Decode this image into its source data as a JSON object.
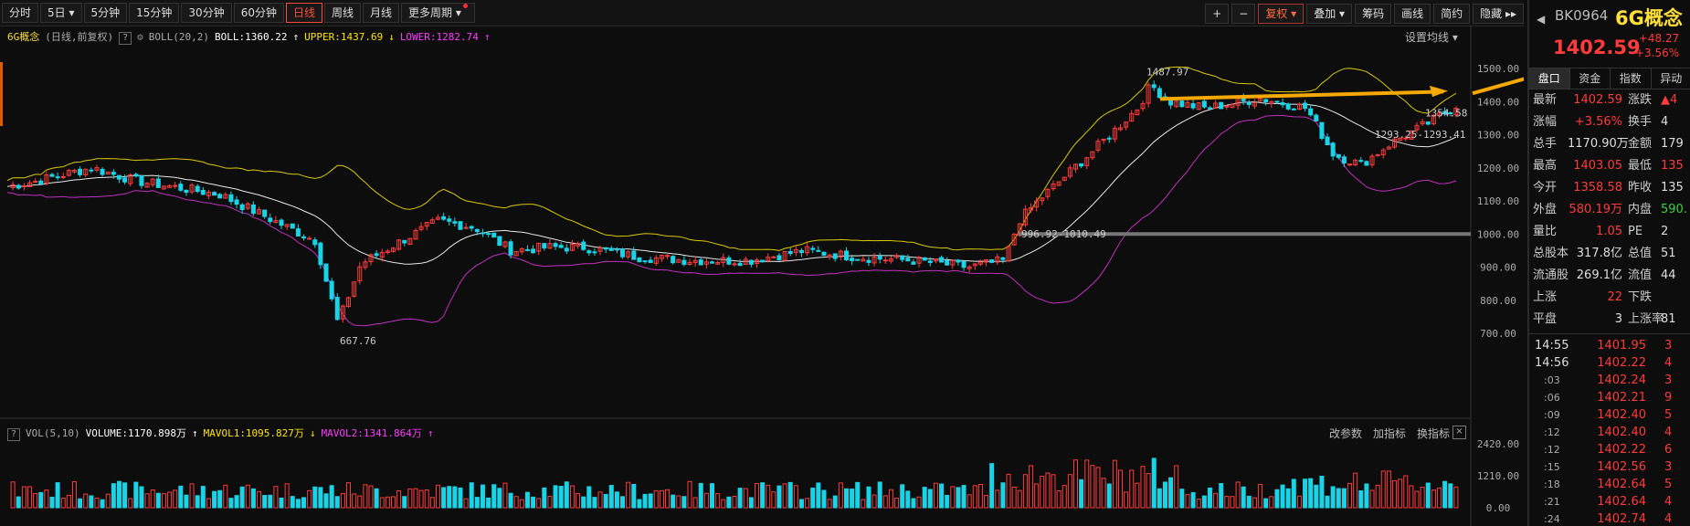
{
  "toolbar": {
    "periods": [
      "分时",
      "5日",
      "5分钟",
      "15分钟",
      "30分钟",
      "60分钟",
      "日线",
      "周线",
      "月线",
      "更多周期"
    ],
    "active_period": "日线",
    "right": [
      "+",
      "−",
      "复权",
      "叠加",
      "筹码",
      "画线",
      "简约",
      "隐藏"
    ]
  },
  "info": {
    "name": "6G概念",
    "mode": "(日线,前复权)",
    "boll": "BOLL(20,2)",
    "mid": "BOLL:1360.22",
    "upper": "UPPER:1437.69",
    "lower": "LOWER:1282.74",
    "settings": "设置均线"
  },
  "volume": {
    "vol": "VOL(5,10)",
    "volume": "VOLUME:1170.898万",
    "mavol1": "MAVOL1:1095.827万",
    "mavol2": "MAVOL2:1341.864万",
    "tools": [
      "改参数",
      "加指标",
      "换指标"
    ],
    "close": "×"
  },
  "chart_data": {
    "type": "candlestick",
    "price_axis": [
      "1500.00",
      "1400.00",
      "1300.00",
      "1200.00",
      "1100.00",
      "1000.00",
      "900.00",
      "800.00",
      "700.00"
    ],
    "volume_axis": [
      "2420.00",
      "1210.00",
      "0.00"
    ],
    "annotations": [
      "1487.97",
      "667.76",
      "996.92-1010.49",
      "1293.25-1293.41",
      "1354.58"
    ],
    "ylim": [
      665,
      1510
    ],
    "volume_max": 2420
  },
  "panel": {
    "code": "BK0964",
    "name": "6G概念",
    "price": "1402.59",
    "change": "+48.27",
    "change_pct": "+3.56%",
    "tabs": [
      "盘口",
      "资金",
      "指数",
      "异动"
    ],
    "rows": [
      {
        "k1": "最新",
        "v1": "1402.59",
        "c1": "r",
        "k2": "涨跌",
        "v2": "▲4",
        "c2": "r"
      },
      {
        "k1": "涨幅",
        "v1": "+3.56%",
        "c1": "r",
        "k2": "换手",
        "v2": "4",
        "c2": "w"
      },
      {
        "k1": "总手",
        "v1": "1170.90万",
        "c1": "w",
        "k2": "金额",
        "v2": "179",
        "c2": "w"
      },
      {
        "k1": "最高",
        "v1": "1403.05",
        "c1": "r",
        "k2": "最低",
        "v2": "135",
        "c2": "r"
      },
      {
        "k1": "今开",
        "v1": "1358.58",
        "c1": "r",
        "k2": "昨收",
        "v2": "135",
        "c2": "w"
      },
      {
        "k1": "外盘",
        "v1": "580.19万",
        "c1": "r",
        "k2": "内盘",
        "v2": "590.",
        "c2": "g"
      },
      {
        "k1": "量比",
        "v1": "1.05",
        "c1": "r",
        "k2": "PE",
        "v2": "2",
        "c2": "w"
      },
      {
        "k1": "总股本",
        "v1": "317.8亿",
        "c1": "w",
        "k2": "总值",
        "v2": "51",
        "c2": "w"
      },
      {
        "k1": "流通股",
        "v1": "269.1亿",
        "c1": "w",
        "k2": "流值",
        "v2": "44",
        "c2": "w"
      },
      {
        "k1": "上涨",
        "v1": "22",
        "c1": "r",
        "k2": "下跌",
        "v2": "",
        "c2": "w"
      },
      {
        "k1": "平盘",
        "v1": "3",
        "c1": "w",
        "k2": "上涨率",
        "v2": "81",
        "c2": "w"
      }
    ],
    "ticks": [
      {
        "t": "14:55",
        "p": "1401.95",
        "v": "3",
        "s": false
      },
      {
        "t": "14:56",
        "p": "1402.22",
        "v": "4",
        "s": false
      },
      {
        "t": ":03",
        "p": "1402.24",
        "v": "3",
        "s": true
      },
      {
        "t": ":06",
        "p": "1402.21",
        "v": "9",
        "s": true
      },
      {
        "t": ":09",
        "p": "1402.40",
        "v": "5",
        "s": true
      },
      {
        "t": ":12",
        "p": "1402.40",
        "v": "4",
        "s": true
      },
      {
        "t": ":12",
        "p": "1402.22",
        "v": "6",
        "s": true
      },
      {
        "t": ":15",
        "p": "1402.56",
        "v": "3",
        "s": true
      },
      {
        "t": ":18",
        "p": "1402.64",
        "v": "5",
        "s": true
      },
      {
        "t": ":21",
        "p": "1402.64",
        "v": "4",
        "s": true
      },
      {
        "t": ":24",
        "p": "1402.74",
        "v": "4",
        "s": true
      }
    ]
  }
}
